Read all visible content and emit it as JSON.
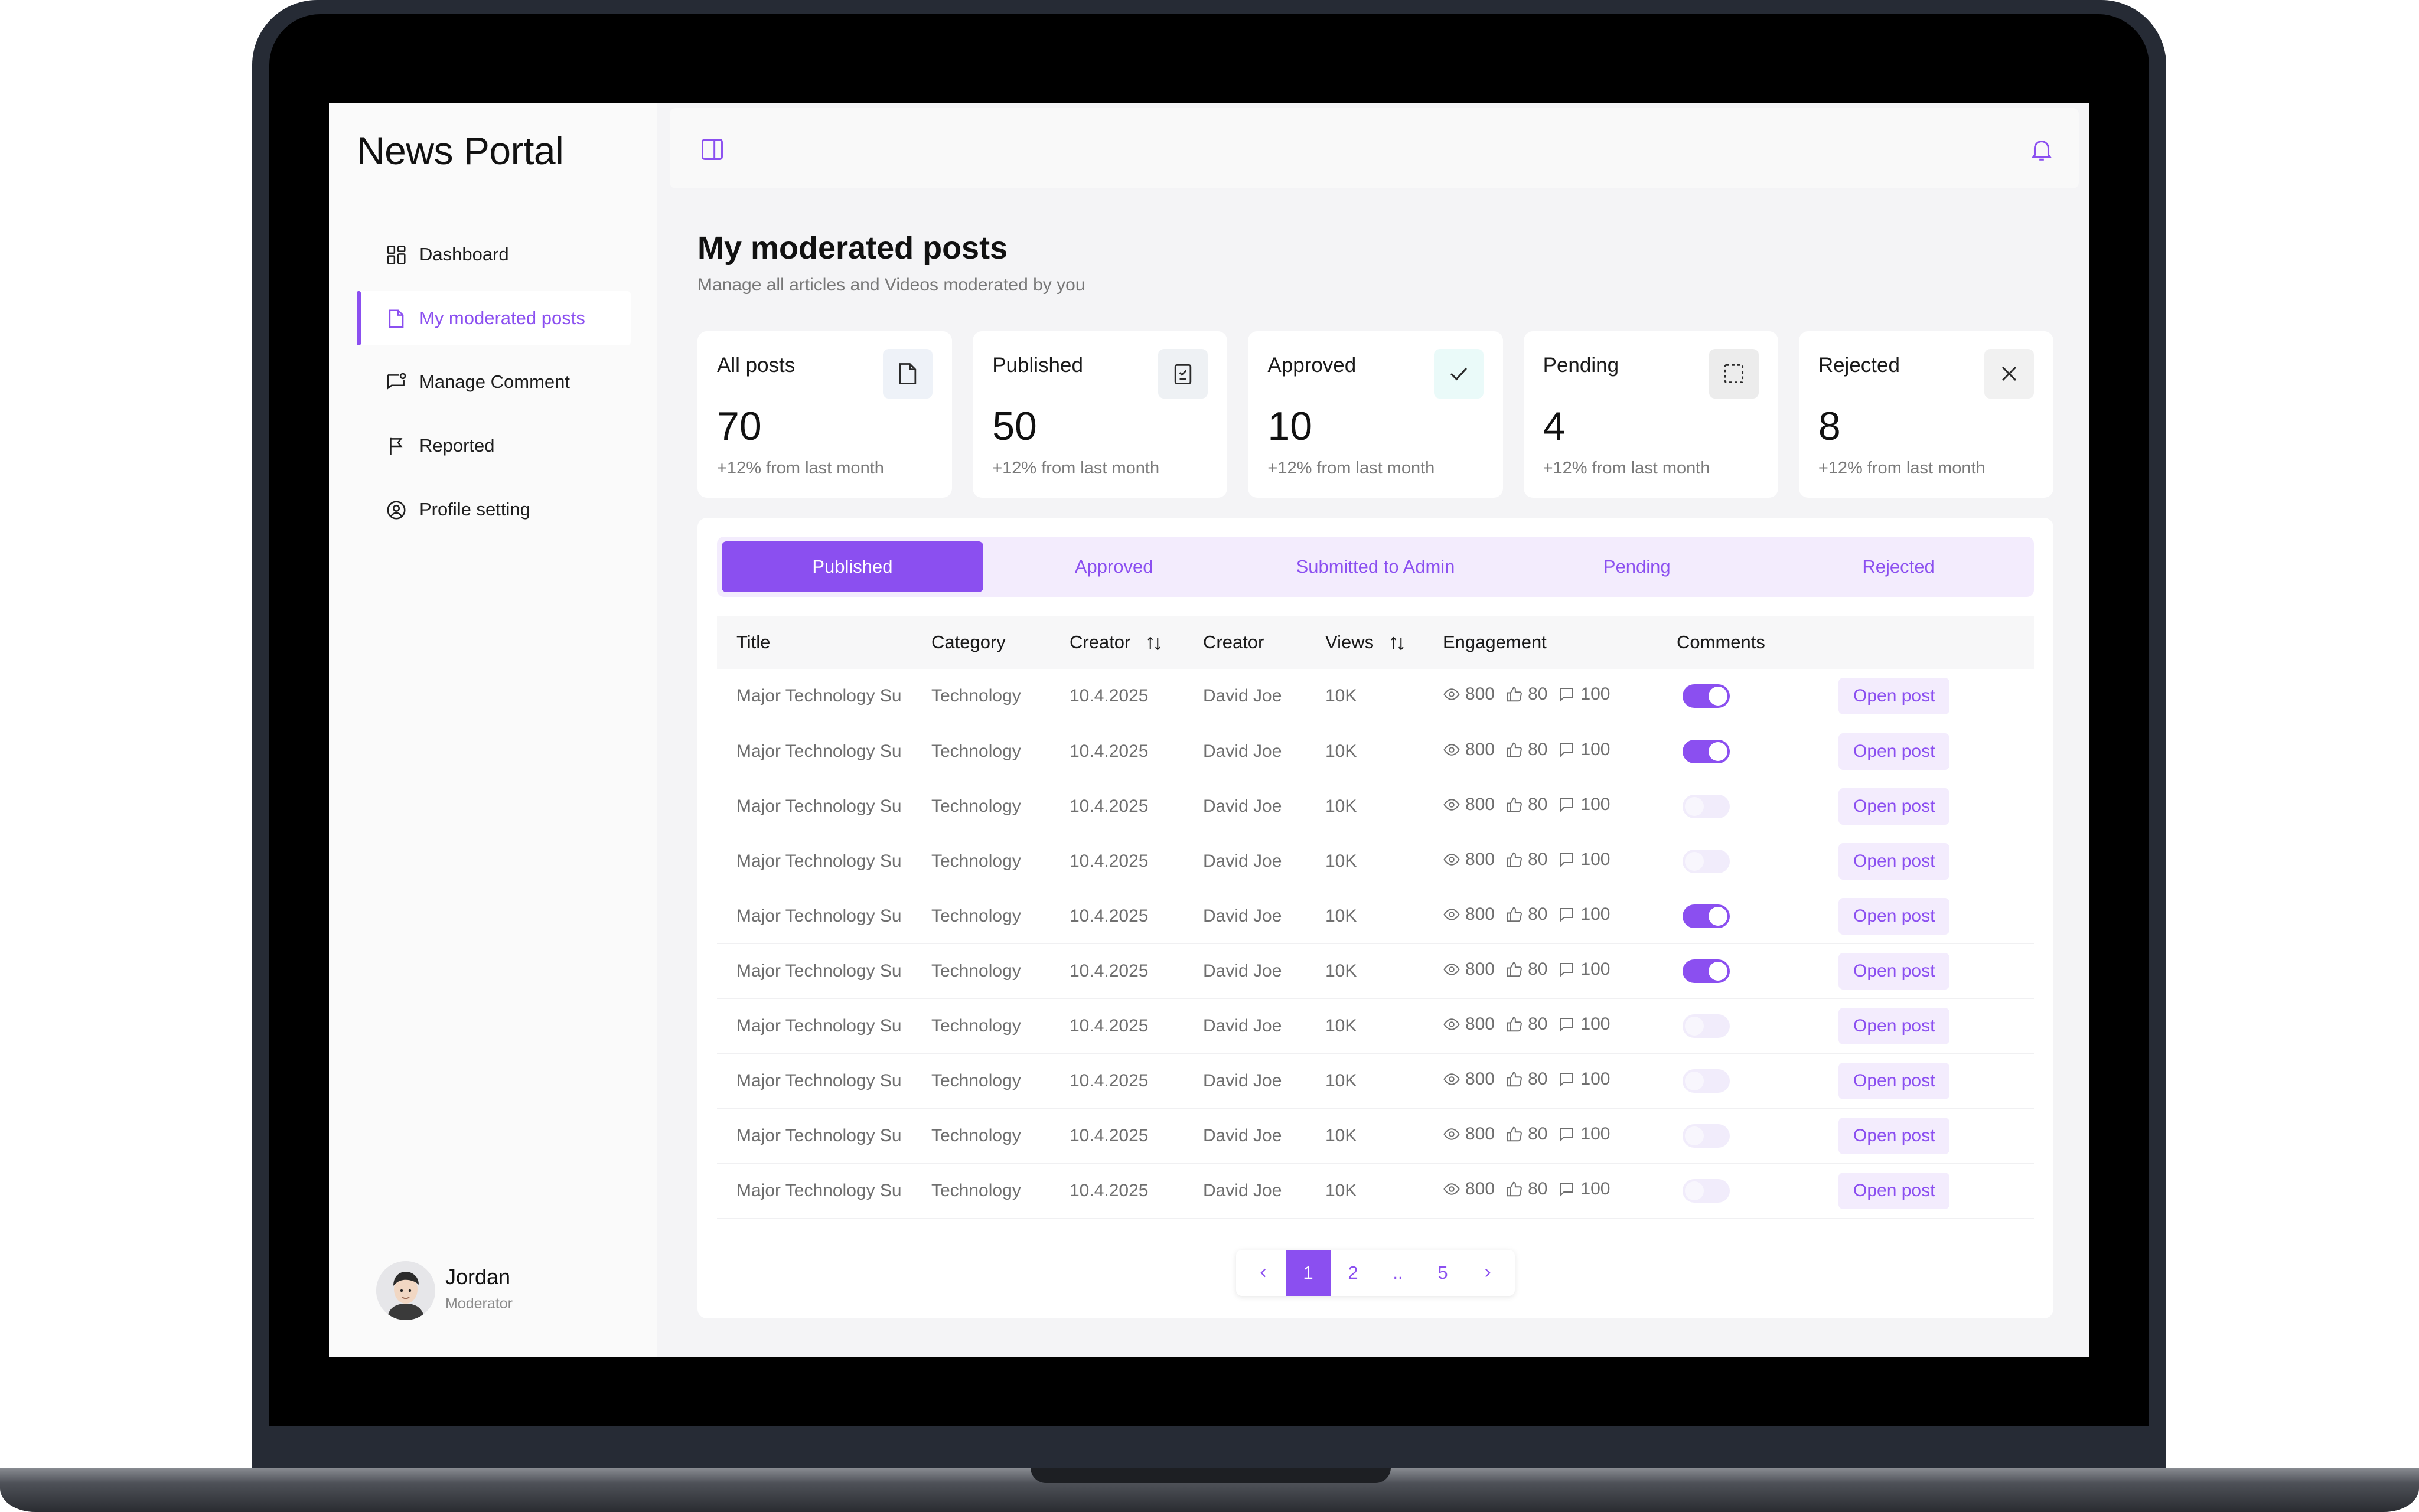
{
  "app": {
    "title": "News Portal"
  },
  "sidebar": {
    "items": [
      {
        "label": "Dashboard",
        "icon": "grid-icon"
      },
      {
        "label": "My moderated posts",
        "icon": "document-icon"
      },
      {
        "label": "Manage Comment",
        "icon": "comment-icon"
      },
      {
        "label": "Reported",
        "icon": "flag-icon"
      },
      {
        "label": "Profile setting",
        "icon": "user-circle-icon"
      }
    ],
    "active_item": "My moderated posts",
    "user": {
      "name": "Jordan",
      "role": "Moderator"
    }
  },
  "header": {
    "title": "My moderated posts",
    "subtitle": "Manage all articles and Videos moderated by you"
  },
  "stats": [
    {
      "label": "All posts",
      "value": "70",
      "delta": "+12% from last month",
      "icon": "document-icon"
    },
    {
      "label": "Published",
      "value": "50",
      "delta": "+12% from last month",
      "icon": "checklist-icon"
    },
    {
      "label": "Approved",
      "value": "10",
      "delta": "+12% from last month",
      "icon": "check-icon"
    },
    {
      "label": "Pending",
      "value": "4",
      "delta": "+12% from last month",
      "icon": "dashed-square-icon"
    },
    {
      "label": "Rejected",
      "value": "8",
      "delta": "+12% from last month",
      "icon": "x-icon"
    }
  ],
  "tabs": [
    "Published",
    "Approved",
    "Submitted to Admin",
    "Pending",
    "Rejected"
  ],
  "active_tab": "Published",
  "table": {
    "columns": [
      "Title",
      "Category",
      "Creator",
      "Creator",
      "Views",
      "Engagement",
      "Comments"
    ],
    "action_label": "Open post",
    "rows": [
      {
        "title": "Major Technology Su",
        "category": "Technology",
        "date": "10.4.2025",
        "creator": "David Joe",
        "views": "10K",
        "eng_views": "800",
        "eng_likes": "80",
        "eng_comments": "100",
        "comments_enabled": true
      },
      {
        "title": "Major Technology Su",
        "category": "Technology",
        "date": "10.4.2025",
        "creator": "David Joe",
        "views": "10K",
        "eng_views": "800",
        "eng_likes": "80",
        "eng_comments": "100",
        "comments_enabled": true
      },
      {
        "title": "Major Technology Su",
        "category": "Technology",
        "date": "10.4.2025",
        "creator": "David Joe",
        "views": "10K",
        "eng_views": "800",
        "eng_likes": "80",
        "eng_comments": "100",
        "comments_enabled": false
      },
      {
        "title": "Major Technology Su",
        "category": "Technology",
        "date": "10.4.2025",
        "creator": "David Joe",
        "views": "10K",
        "eng_views": "800",
        "eng_likes": "80",
        "eng_comments": "100",
        "comments_enabled": false
      },
      {
        "title": "Major Technology Su",
        "category": "Technology",
        "date": "10.4.2025",
        "creator": "David Joe",
        "views": "10K",
        "eng_views": "800",
        "eng_likes": "80",
        "eng_comments": "100",
        "comments_enabled": true
      },
      {
        "title": "Major Technology Su",
        "category": "Technology",
        "date": "10.4.2025",
        "creator": "David Joe",
        "views": "10K",
        "eng_views": "800",
        "eng_likes": "80",
        "eng_comments": "100",
        "comments_enabled": true
      },
      {
        "title": "Major Technology Su",
        "category": "Technology",
        "date": "10.4.2025",
        "creator": "David Joe",
        "views": "10K",
        "eng_views": "800",
        "eng_likes": "80",
        "eng_comments": "100",
        "comments_enabled": false
      },
      {
        "title": "Major Technology Su",
        "category": "Technology",
        "date": "10.4.2025",
        "creator": "David Joe",
        "views": "10K",
        "eng_views": "800",
        "eng_likes": "80",
        "eng_comments": "100",
        "comments_enabled": false
      },
      {
        "title": "Major Technology Su",
        "category": "Technology",
        "date": "10.4.2025",
        "creator": "David Joe",
        "views": "10K",
        "eng_views": "800",
        "eng_likes": "80",
        "eng_comments": "100",
        "comments_enabled": false
      },
      {
        "title": "Major Technology Su",
        "category": "Technology",
        "date": "10.4.2025",
        "creator": "David Joe",
        "views": "10K",
        "eng_views": "800",
        "eng_likes": "80",
        "eng_comments": "100",
        "comments_enabled": false
      }
    ]
  },
  "pagination": {
    "pages": [
      "1",
      "2",
      "..",
      "5"
    ],
    "current": "1"
  },
  "colors": {
    "accent": "#8b4ff0",
    "accent_light": "#f3ecfd",
    "approved_bg": "#eafaf9",
    "pending_bg": "#ececec",
    "rejected_bg": "#f1f1f1",
    "all_posts_bg": "#eef2f8",
    "published_bg": "#eef1f4"
  }
}
